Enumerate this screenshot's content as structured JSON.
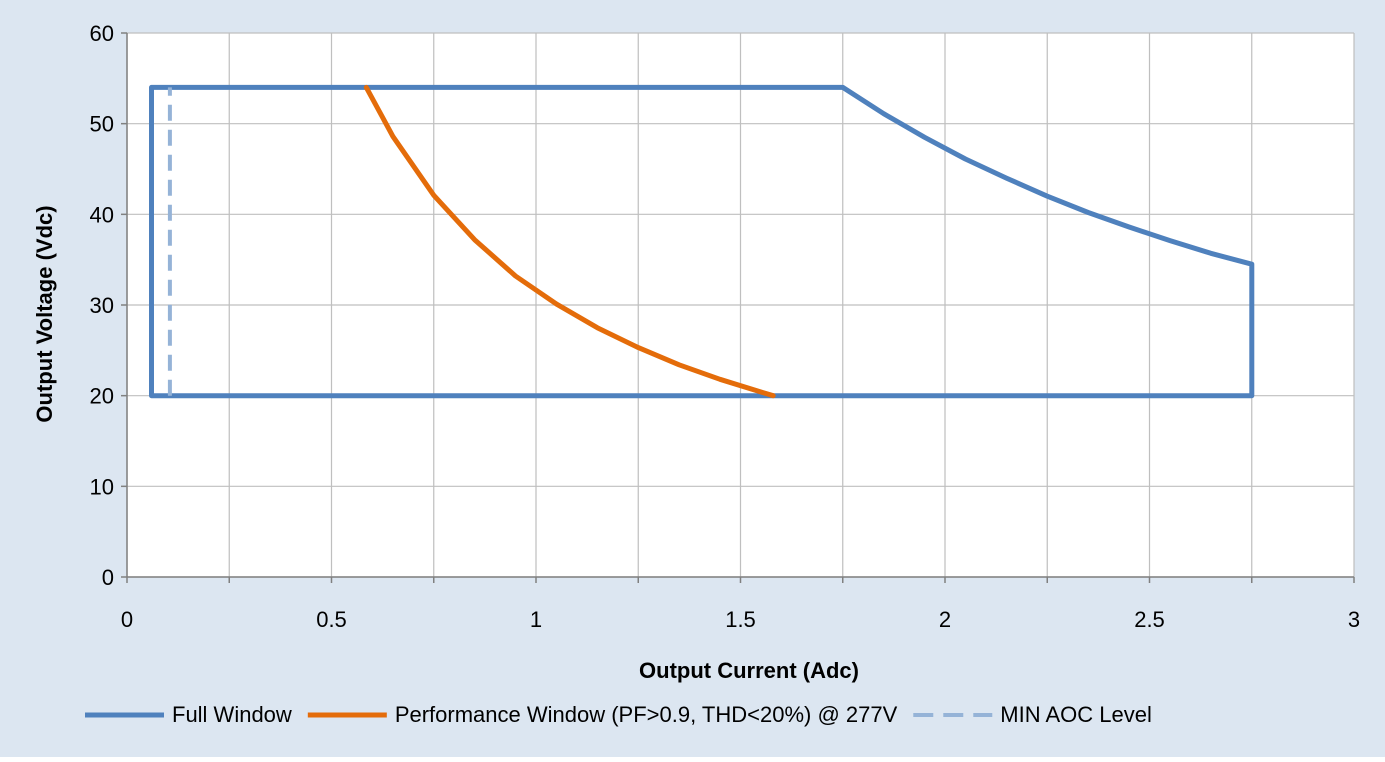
{
  "chart_data": {
    "type": "line",
    "title": "",
    "xlabel": "Output Current (Adc)",
    "ylabel": "Output Voltage (Vdc)",
    "xlim": [
      0,
      3
    ],
    "ylim": [
      0,
      60
    ],
    "x_ticks": [
      0,
      0.5,
      1,
      1.5,
      2,
      2.5,
      3
    ],
    "x_tick_labels": [
      "0",
      "0.5",
      "1",
      "1.5",
      "2",
      "2.5",
      "3"
    ],
    "y_ticks": [
      0,
      10,
      20,
      30,
      40,
      50,
      60
    ],
    "y_tick_labels": [
      "0",
      "10",
      "20",
      "30",
      "40",
      "50",
      "60"
    ],
    "grid": true,
    "legend_position": "bottom",
    "background_color": "#dce6f1",
    "plot_background_color": "#ffffff",
    "grid_color": "#bfbfbf",
    "series": [
      {
        "name": "Full Window",
        "color": "#4f81bd",
        "style": "solid",
        "x": [
          0.06,
          0.06,
          1.75,
          1.85,
          1.95,
          2.05,
          2.15,
          2.25,
          2.35,
          2.45,
          2.55,
          2.65,
          2.75,
          2.75,
          0.06
        ],
        "y": [
          20,
          54,
          54,
          51.1,
          48.5,
          46.1,
          44.0,
          42.0,
          40.2,
          38.6,
          37.1,
          35.7,
          34.5,
          20,
          20
        ]
      },
      {
        "name": "Performance Window (PF>0.9, THD<20%) @ 277V",
        "color": "#e46c0a",
        "style": "solid",
        "x": [
          0.585,
          0.65,
          0.75,
          0.85,
          0.95,
          1.05,
          1.15,
          1.25,
          1.35,
          1.45,
          1.55,
          1.58
        ],
        "y": [
          54,
          48.6,
          42.1,
          37.2,
          33.2,
          30.1,
          27.5,
          25.3,
          23.4,
          21.8,
          20.4,
          20
        ]
      },
      {
        "name": "MIN AOC Level",
        "color": "#95b3d7",
        "style": "dashed",
        "x": [
          0.105,
          0.105
        ],
        "y": [
          20,
          54
        ]
      }
    ]
  }
}
